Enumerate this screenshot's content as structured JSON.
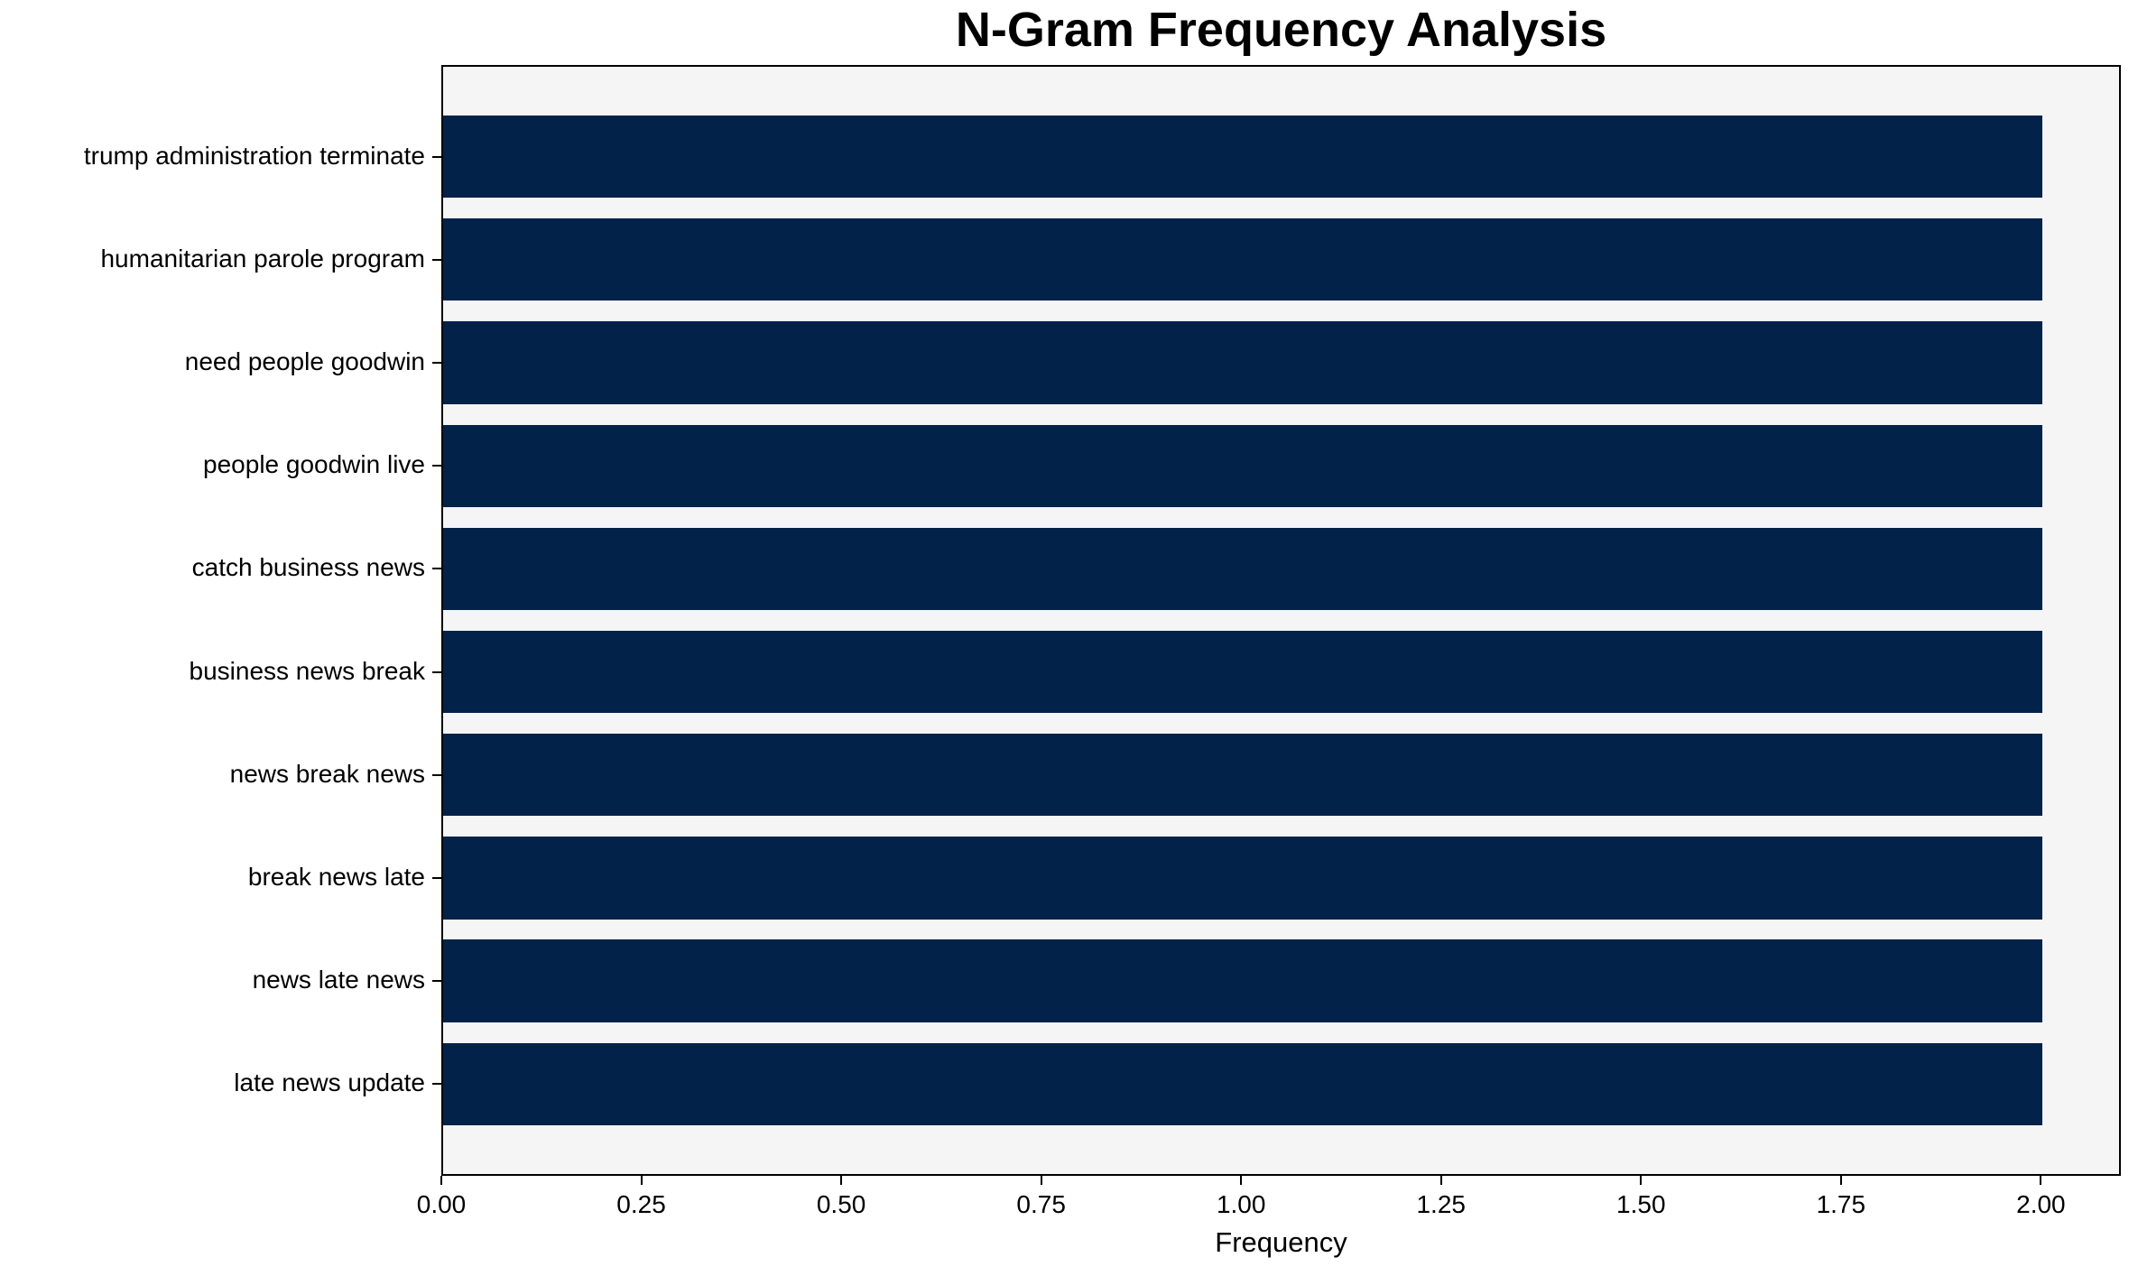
{
  "chart_data": {
    "type": "bar",
    "orientation": "horizontal",
    "title": "N-Gram Frequency Analysis",
    "xlabel": "Frequency",
    "ylabel": "",
    "categories": [
      "trump administration terminate",
      "humanitarian parole program",
      "need people goodwin",
      "people goodwin live",
      "catch business news",
      "business news break",
      "news break news",
      "break news late",
      "news late news",
      "late news update"
    ],
    "values": [
      2,
      2,
      2,
      2,
      2,
      2,
      2,
      2,
      2,
      2
    ],
    "xlim": [
      0,
      2.1
    ],
    "xtick_values": [
      0,
      0.25,
      0.5,
      0.75,
      1.0,
      1.25,
      1.5,
      1.75,
      2.0
    ],
    "xtick_labels": [
      "0.00",
      "0.25",
      "0.50",
      "0.75",
      "1.00",
      "1.25",
      "1.50",
      "1.75",
      "2.00"
    ],
    "bar_fraction": 0.8,
    "axis_margin": 0.05,
    "grid": false,
    "legend": null,
    "colors": {
      "bar": "#032249",
      "plot_background": "#f5f5f6",
      "figure_background": "#ffffff",
      "spine": "#000000",
      "text": "#000000"
    }
  }
}
